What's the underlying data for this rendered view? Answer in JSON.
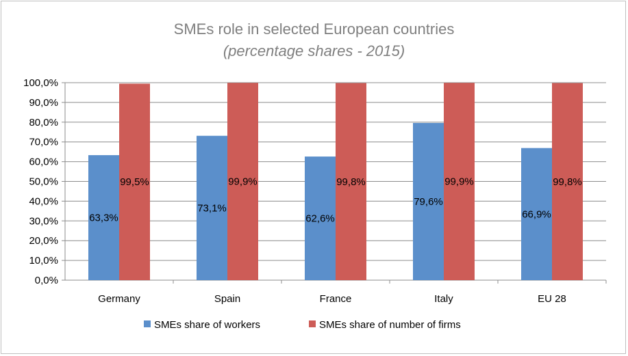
{
  "chart_data": {
    "type": "bar",
    "title": "SMEs role in selected European countries",
    "subtitle": "(percentage shares - 2015)",
    "categories": [
      "Germany",
      "Spain",
      "France",
      "Italy",
      "EU 28"
    ],
    "series": [
      {
        "name": "SMEs share of workers",
        "color": "#5b8fcb",
        "values": [
          63.3,
          73.1,
          62.6,
          79.6,
          66.9
        ],
        "labels": [
          "63,3%",
          "73,1%",
          "62,6%",
          "79,6%",
          "66,9%"
        ]
      },
      {
        "name": "SMEs share of number of firms",
        "color": "#cd5c57",
        "values": [
          99.5,
          99.9,
          99.8,
          99.9,
          99.8
        ],
        "labels": [
          "99,5%",
          "99,9%",
          "99,8%",
          "99,9%",
          "99,8%"
        ]
      }
    ],
    "ylim": [
      0,
      100
    ],
    "yticks": [
      "0,0%",
      "10,0%",
      "20,0%",
      "30,0%",
      "40,0%",
      "50,0%",
      "60,0%",
      "70,0%",
      "80,0%",
      "90,0%",
      "100,0%"
    ],
    "grid": true,
    "legend_position": "bottom"
  }
}
